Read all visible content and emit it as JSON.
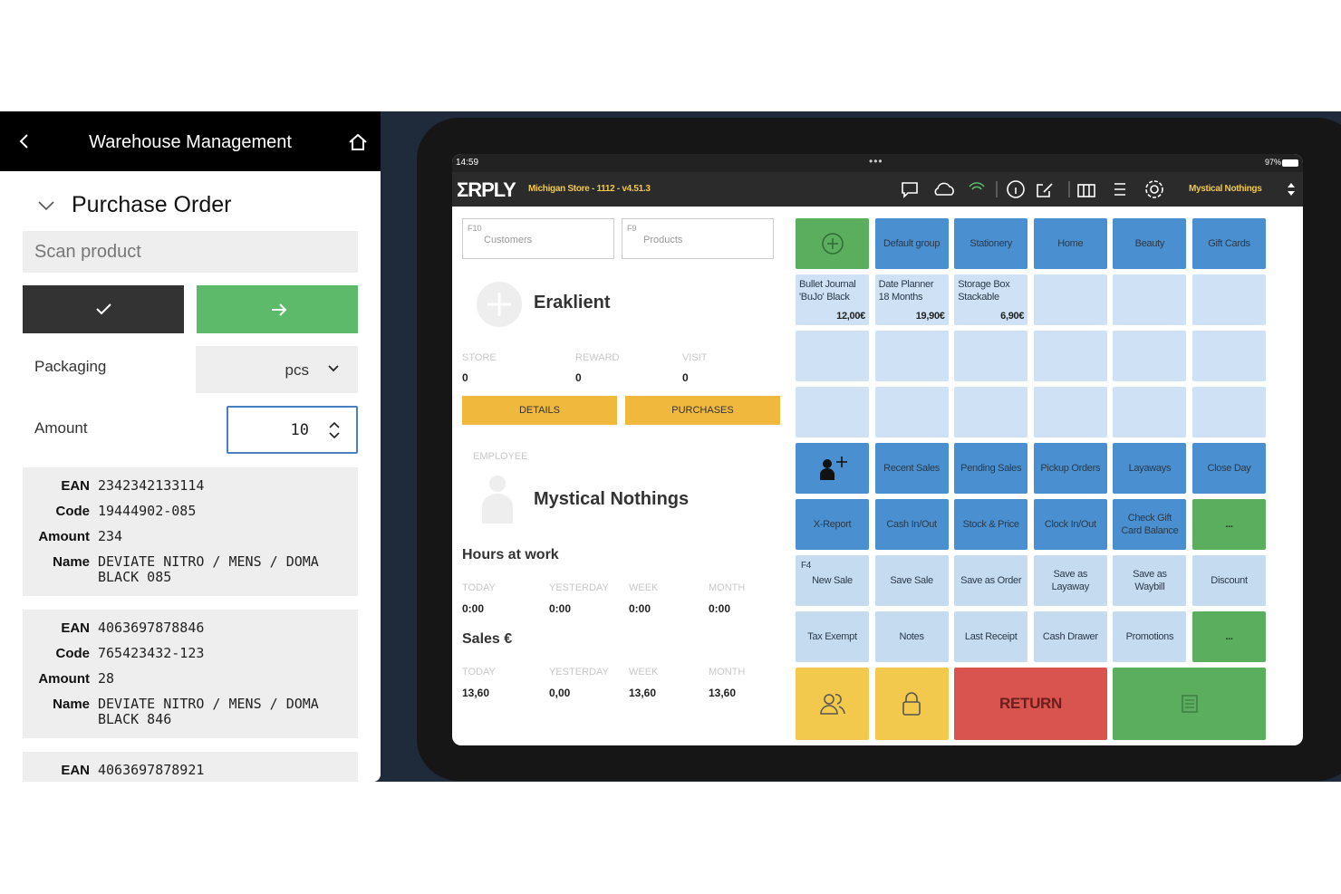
{
  "warehouse": {
    "title": "Warehouse Management",
    "section": "Purchase Order",
    "scan_placeholder": "Scan product",
    "packaging_label": "Packaging",
    "packaging_value": "pcs",
    "amount_label": "Amount",
    "amount_value": 10,
    "field_labels": {
      "ean": "EAN",
      "code": "Code",
      "amount": "Amount",
      "name": "Name"
    },
    "items": [
      {
        "ean": "2342342133114",
        "code": "19444902-085",
        "amount": 234,
        "name": "DEVIATE NITRO / MENS / DOMA BLACK 085"
      },
      {
        "ean": "4063697878846",
        "code": "765423432-123",
        "amount": 28,
        "name": "DEVIATE NITRO / MENS / DOMA BLACK 846"
      },
      {
        "ean": "4063697878921"
      }
    ]
  },
  "pos": {
    "time": "14:59",
    "battery": "97%",
    "logo": "ΣRPLY",
    "store": "Michigan Store - 1112 - v4.51.3",
    "user": "Mystical Nothings",
    "customers_key": "F10",
    "customers": "Customers",
    "products_key": "F9",
    "products": "Products",
    "customer_name": "Eraklient",
    "customer_stats": [
      {
        "label": "STORE",
        "value": 0
      },
      {
        "label": "REWARD",
        "value": 0
      },
      {
        "label": "VISIT",
        "value": 0
      }
    ],
    "details": "DETAILS",
    "purchases": "PURCHASES",
    "employee_label": "EMPLOYEE",
    "employee_name": "Mystical Nothings",
    "hours_title": "Hours at work",
    "hours": [
      {
        "label": "TODAY",
        "value": "0:00"
      },
      {
        "label": "YESTERDAY",
        "value": "0:00"
      },
      {
        "label": "WEEK",
        "value": "0:00"
      },
      {
        "label": "MONTH",
        "value": "0:00"
      }
    ],
    "sales_title": "Sales €",
    "sales": [
      {
        "label": "TODAY",
        "value": "13,60"
      },
      {
        "label": "YESTERDAY",
        "value": "0,00"
      },
      {
        "label": "WEEK",
        "value": "13,60"
      },
      {
        "label": "MONTH",
        "value": "13,60"
      }
    ],
    "tiles": [
      {
        "color": "#5aae5e"
      },
      {
        "label": "Default group",
        "color": "#4a8fd0"
      },
      {
        "label": "Stationery",
        "color": "#4a8fd0"
      },
      {
        "label": "Home",
        "color": "#4a8fd0"
      },
      {
        "label": "Beauty",
        "color": "#4a8fd0"
      },
      {
        "label": "Gift Cards",
        "color": "#4a8fd0"
      },
      {
        "label": "Bullet Journal 'BuJo' Black",
        "price": "12,00€",
        "color": "#cfe2f5"
      },
      {
        "label": "Date Planner 18 Months",
        "price": "19,90€",
        "color": "#cfe2f5"
      },
      {
        "label": "Storage Box Stackable",
        "price": "6,90€",
        "color": "#cfe2f5"
      },
      {
        "color": "#cfe2f5"
      },
      {
        "color": "#cfe2f5"
      },
      {
        "color": "#cfe2f5"
      },
      {
        "color": "#cfe2f5"
      },
      {
        "color": "#cfe2f5"
      },
      {
        "color": "#cfe2f5"
      },
      {
        "color": "#cfe2f5"
      },
      {
        "color": "#cfe2f5"
      },
      {
        "color": "#cfe2f5"
      },
      {
        "color": "#cfe2f5"
      },
      {
        "color": "#cfe2f5"
      },
      {
        "color": "#cfe2f5"
      },
      {
        "color": "#cfe2f5"
      },
      {
        "color": "#cfe2f5"
      },
      {
        "color": "#cfe2f5"
      },
      {
        "color": "#4a8fd0"
      },
      {
        "label": "Recent Sales",
        "color": "#4a8fd0"
      },
      {
        "label": "Pending Sales",
        "color": "#4a8fd0"
      },
      {
        "label": "Pickup Orders",
        "color": "#4a8fd0"
      },
      {
        "label": "Layaways",
        "color": "#4a8fd0"
      },
      {
        "label": "Close Day",
        "color": "#4a8fd0"
      },
      {
        "label": "X-Report",
        "color": "#4a8fd0"
      },
      {
        "label": "Cash In/Out",
        "color": "#4a8fd0"
      },
      {
        "label": "Stock & Price",
        "color": "#4a8fd0"
      },
      {
        "label": "Clock In/Out",
        "color": "#4a8fd0"
      },
      {
        "label": "Check Gift Card Balance",
        "color": "#4a8fd0"
      },
      {
        "label": "...",
        "color": "#5aae5e"
      },
      {
        "key": "F4",
        "label": "New Sale",
        "color": "#c5dbf0"
      },
      {
        "label": "Save Sale",
        "color": "#c5dbf0"
      },
      {
        "label": "Save as Order",
        "color": "#c5dbf0"
      },
      {
        "label": "Save as Layaway",
        "color": "#c5dbf0"
      },
      {
        "label": "Save as Waybill",
        "color": "#c5dbf0"
      },
      {
        "label": "Discount",
        "color": "#c5dbf0"
      },
      {
        "label": "Tax Exempt",
        "color": "#c5dbf0"
      },
      {
        "label": "Notes",
        "color": "#c5dbf0"
      },
      {
        "label": "Last Receipt",
        "color": "#c5dbf0"
      },
      {
        "label": "Cash Drawer",
        "color": "#c5dbf0"
      },
      {
        "label": "Promotions",
        "color": "#c5dbf0"
      },
      {
        "label": "...",
        "color": "#5aae5e"
      },
      {
        "color": "#f2c94c"
      },
      {
        "color": "#f2c94c"
      },
      {
        "label": "RETURN",
        "color": "#d9534f",
        "span": 2
      },
      {
        "color": "#5aae5e",
        "span": 2
      }
    ]
  }
}
